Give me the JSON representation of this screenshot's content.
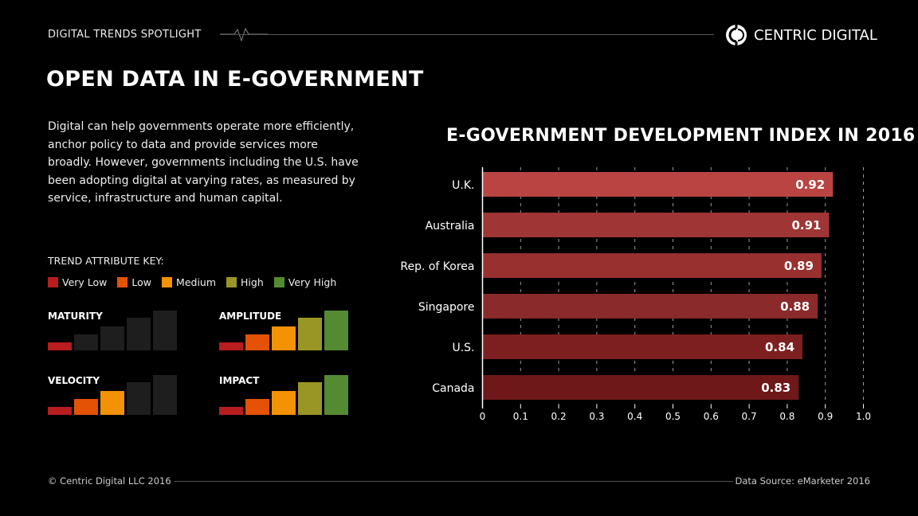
{
  "header": {
    "kicker": "DIGITAL TRENDS SPOTLIGHT",
    "brand": "CENTRIC DIGITAL",
    "brand_icon": "centric-digital-logo-icon"
  },
  "title": "OPEN DATA IN E-GOVERNMENT",
  "intro": "Digital can help governments operate more efficiently, anchor policy to data and provide services more broadly. However, governments including the U.S. have been adopting digital at varying rates, as measured by service, infrastructure and human capital.",
  "key": {
    "title": "TREND ATTRIBUTE KEY:",
    "levels": [
      {
        "label": "Very Low",
        "color": "#b81d1f"
      },
      {
        "label": "Low",
        "color": "#e35205"
      },
      {
        "label": "Medium",
        "color": "#f39205"
      },
      {
        "label": "High",
        "color": "#9a9625"
      },
      {
        "label": "Very High",
        "color": "#548b32"
      }
    ],
    "inactive_color": "#1e1e1e"
  },
  "attributes": [
    {
      "name": "MATURITY",
      "level": 1
    },
    {
      "name": "AMPLITUDE",
      "level": 5
    },
    {
      "name": "VELOCITY",
      "level": 3
    },
    {
      "name": "IMPACT",
      "level": 5
    }
  ],
  "chart_data": {
    "type": "bar",
    "orientation": "horizontal",
    "title": "E-GOVERNMENT DEVELOPMENT INDEX IN 2016",
    "categories": [
      "U.K.",
      "Australia",
      "Rep. of Korea",
      "Singapore",
      "U.S.",
      "Canada"
    ],
    "values": [
      0.92,
      0.91,
      0.89,
      0.88,
      0.84,
      0.83
    ],
    "value_labels": [
      "0.92",
      "0.91",
      "0.89",
      "0.88",
      "0.84",
      "0.83"
    ],
    "colors": [
      "#b94442",
      "#9f3535",
      "#983030",
      "#8a2a2a",
      "#7d1f20",
      "#6e1819"
    ],
    "xlim": [
      0,
      1.0
    ],
    "xticks": [
      "0",
      "0.1",
      "0.2",
      "0.3",
      "0.4",
      "0.5",
      "0.6",
      "0.7",
      "0.8",
      "0.9",
      "1.0"
    ],
    "grid": "vertical dashed"
  },
  "footer": {
    "copyright": "© Centric Digital LLC 2016",
    "source": "Data Source: eMarketer 2016"
  }
}
